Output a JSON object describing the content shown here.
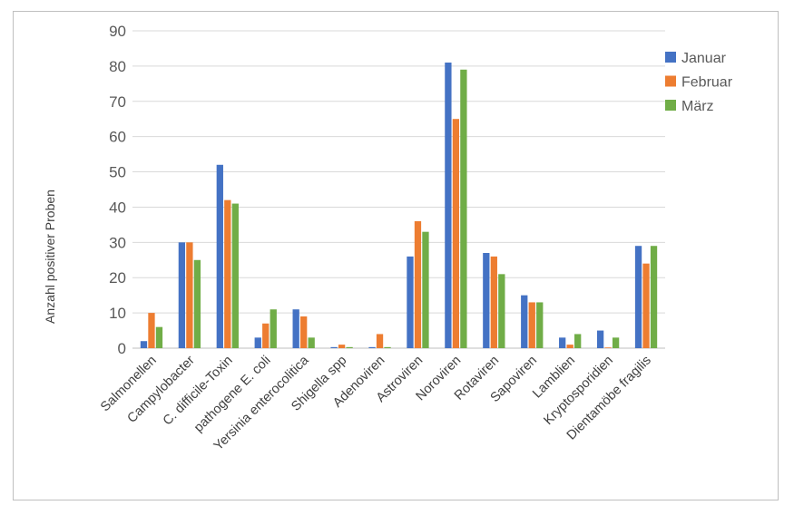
{
  "chart_data": {
    "type": "bar",
    "ylabel": "Anzahl positiver Proben",
    "xlabel": "",
    "ylim": [
      0,
      90
    ],
    "yticks": [
      0,
      10,
      20,
      30,
      40,
      50,
      60,
      70,
      80,
      90
    ],
    "grid": true,
    "legend_position": "right",
    "categories": [
      "Salmonellen",
      "Campylobacter",
      "C. difficile-Toxin",
      "pathogene E. coli",
      "Yersinia enterocolitica",
      "Shigella spp",
      "Adenoviren",
      "Astroviren",
      "Noroviren",
      "Rotaviren",
      "Sapoviren",
      "Lamblien",
      "Kryptosporidien",
      "Dientamöbe fragilis"
    ],
    "series": [
      {
        "name": "Januar",
        "color": "#4472c4",
        "values": [
          2,
          30,
          52,
          3,
          11,
          0.3,
          0.3,
          26,
          81,
          27,
          15,
          3,
          5,
          29
        ]
      },
      {
        "name": "Februar",
        "color": "#ed7d31",
        "values": [
          10,
          30,
          42,
          7,
          9,
          1,
          4,
          36,
          65,
          26,
          13,
          1,
          0.2,
          24
        ]
      },
      {
        "name": "März",
        "color": "#70ad47",
        "values": [
          6,
          25,
          41,
          11,
          3,
          0.3,
          0.3,
          33,
          79,
          21,
          13,
          4,
          3,
          29
        ]
      }
    ]
  }
}
